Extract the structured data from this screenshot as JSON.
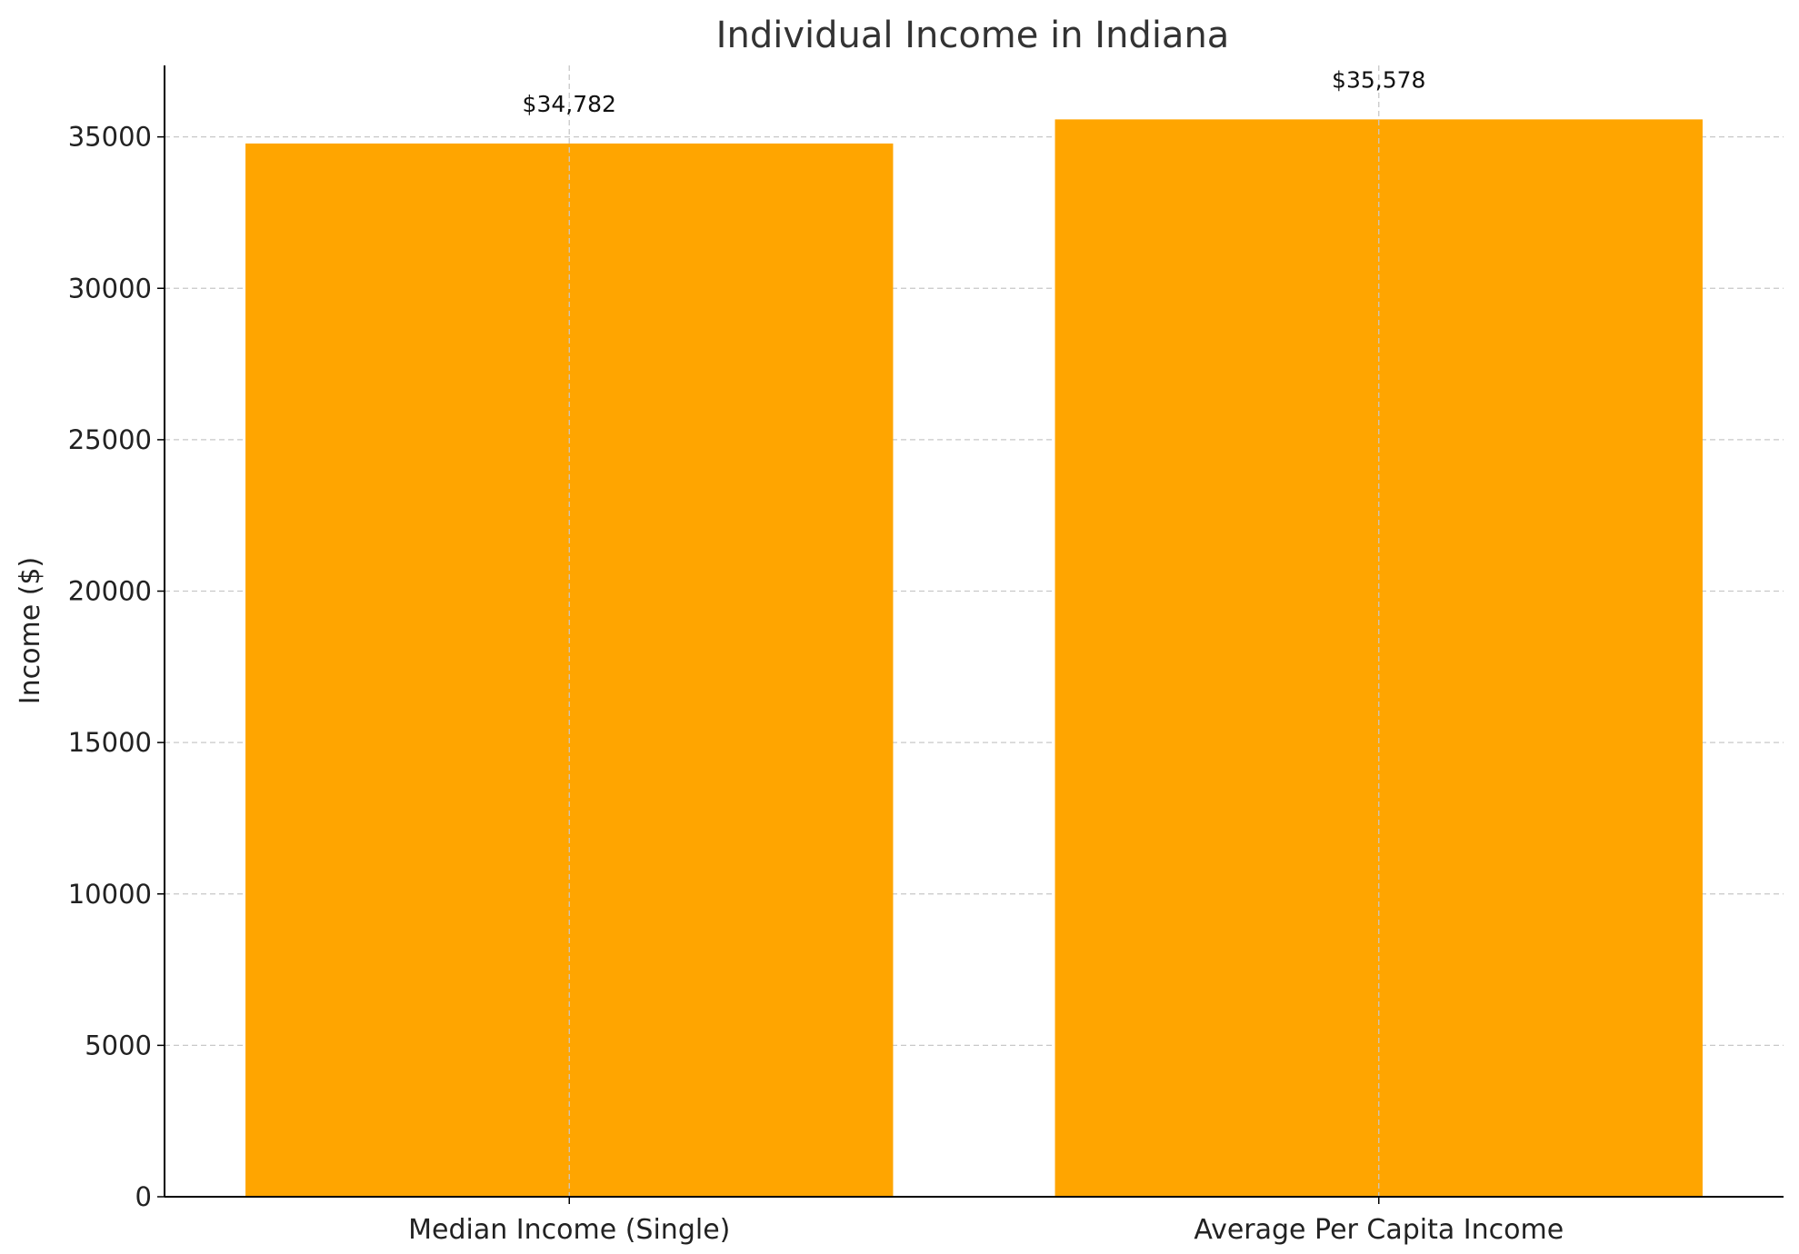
{
  "chart_data": {
    "type": "bar",
    "title": "Individual Income in Indiana",
    "xlabel": "",
    "ylabel": "Income ($)",
    "categories": [
      "Median Income (Single)",
      "Average Per Capita Income"
    ],
    "values": [
      34782,
      35578
    ],
    "value_labels": [
      "$34,782",
      "$35,578"
    ],
    "ylim": [
      0,
      37360
    ],
    "yticks": [
      0,
      5000,
      10000,
      15000,
      20000,
      25000,
      30000,
      35000
    ],
    "ytick_labels": [
      "0",
      "5000",
      "10000",
      "15000",
      "20000",
      "25000",
      "30000",
      "35000"
    ],
    "grid": true,
    "bar_color": "#FFA500",
    "grid_color": "#c8c8c8",
    "axis_color": "#000000"
  }
}
